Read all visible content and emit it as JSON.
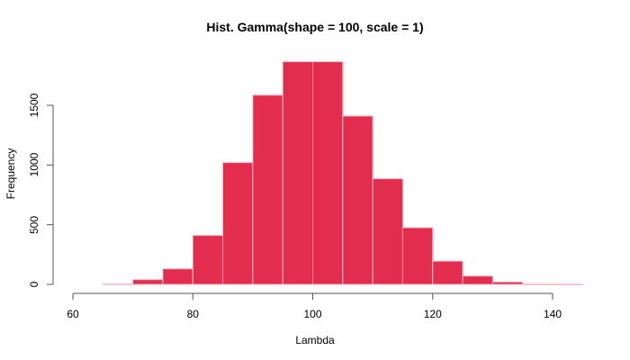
{
  "chart_data": {
    "type": "bar",
    "subtype": "histogram",
    "title": "Hist. Gamma(shape = 100, scale = 1)",
    "xlabel": "Lambda",
    "ylabel": "Frequency",
    "bin_width": 5,
    "bins": [
      {
        "from": 65,
        "to": 70,
        "count": 3
      },
      {
        "from": 70,
        "to": 75,
        "count": 40
      },
      {
        "from": 75,
        "to": 80,
        "count": 130
      },
      {
        "from": 80,
        "to": 85,
        "count": 410
      },
      {
        "from": 85,
        "to": 90,
        "count": 1020
      },
      {
        "from": 90,
        "to": 95,
        "count": 1585
      },
      {
        "from": 95,
        "to": 100,
        "count": 1865
      },
      {
        "from": 100,
        "to": 105,
        "count": 1865
      },
      {
        "from": 105,
        "to": 110,
        "count": 1410
      },
      {
        "from": 110,
        "to": 115,
        "count": 885
      },
      {
        "from": 115,
        "to": 120,
        "count": 475
      },
      {
        "from": 120,
        "to": 125,
        "count": 195
      },
      {
        "from": 125,
        "to": 130,
        "count": 70
      },
      {
        "from": 130,
        "to": 135,
        "count": 20
      },
      {
        "from": 135,
        "to": 140,
        "count": 2
      },
      {
        "from": 140,
        "to": 145,
        "count": 1
      }
    ],
    "xticks": [
      60,
      80,
      100,
      120,
      140
    ],
    "yticks": [
      0,
      500,
      1000,
      1500
    ],
    "xlim": [
      60,
      145
    ],
    "ylim": [
      0,
      1900
    ],
    "grid": false,
    "legend": null,
    "colors": {
      "bar_fill": "#E22D4F",
      "bar_border": "#F4B8C4",
      "axis": "#555555"
    }
  },
  "labels": {
    "title": "Hist. Gamma(shape = 100, scale = 1)",
    "xlabel": "Lambda",
    "ylabel": "Frequency"
  }
}
